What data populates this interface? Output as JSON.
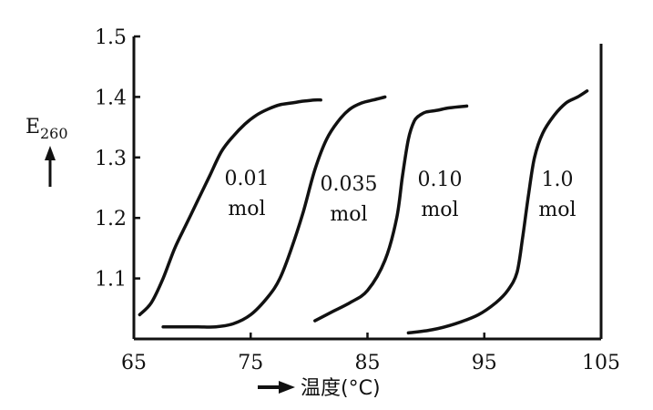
{
  "chart_data": {
    "type": "line",
    "ylabel": "E260",
    "ylabel_main": "E",
    "ylabel_sub": "260",
    "xlabel": "温度(°C)",
    "xlim": [
      65,
      105
    ],
    "ylim": [
      1.0,
      1.5
    ],
    "x_ticks": [
      65,
      75,
      85,
      95,
      105
    ],
    "x_tick_labels": [
      "65",
      "75",
      "85",
      "95",
      "105"
    ],
    "y_ticks": [
      1.1,
      1.2,
      1.3,
      1.4,
      1.5
    ],
    "y_tick_labels": [
      "1.1",
      "1.2",
      "1.3",
      "1.4",
      "1.5"
    ],
    "grid": false,
    "series": [
      {
        "label_line1": "0.01",
        "label_line2": "mol",
        "x": [
          65.5,
          66.5,
          67.5,
          68.5,
          69.5,
          70.5,
          71.5,
          72.5,
          73.5,
          74.5,
          75.5,
          76.5,
          77.5,
          78.5,
          79.5,
          80.5,
          81.0
        ],
        "y": [
          1.04,
          1.06,
          1.1,
          1.15,
          1.19,
          1.23,
          1.27,
          1.31,
          1.335,
          1.355,
          1.37,
          1.38,
          1.387,
          1.39,
          1.393,
          1.395,
          1.395
        ]
      },
      {
        "label_line1": "0.035",
        "label_line2": "mol",
        "x": [
          67.5,
          69.0,
          70.5,
          72.0,
          73.5,
          75.0,
          76.5,
          77.5,
          78.5,
          79.5,
          80.5,
          81.5,
          82.5,
          83.5,
          84.5,
          85.5,
          86.5
        ],
        "y": [
          1.02,
          1.02,
          1.02,
          1.02,
          1.025,
          1.04,
          1.07,
          1.1,
          1.15,
          1.21,
          1.28,
          1.33,
          1.36,
          1.38,
          1.39,
          1.395,
          1.4
        ]
      },
      {
        "label_line1": "0.10",
        "label_line2": "mol",
        "x": [
          80.5,
          82.0,
          83.5,
          85.0,
          86.5,
          87.5,
          88.0,
          88.5,
          89.0,
          89.5,
          90.0,
          91.0,
          92.0,
          93.5
        ],
        "y": [
          1.03,
          1.045,
          1.06,
          1.08,
          1.13,
          1.2,
          1.27,
          1.33,
          1.36,
          1.37,
          1.375,
          1.378,
          1.382,
          1.385
        ]
      },
      {
        "label_line1": "1.0",
        "label_line2": "mol",
        "x": [
          88.5,
          90.5,
          92.5,
          94.5,
          96.0,
          97.0,
          97.8,
          98.3,
          98.8,
          99.3,
          100.0,
          101.0,
          102.0,
          103.0,
          103.8
        ],
        "y": [
          1.01,
          1.015,
          1.025,
          1.04,
          1.06,
          1.08,
          1.11,
          1.17,
          1.24,
          1.3,
          1.34,
          1.37,
          1.39,
          1.4,
          1.41
        ]
      }
    ]
  }
}
